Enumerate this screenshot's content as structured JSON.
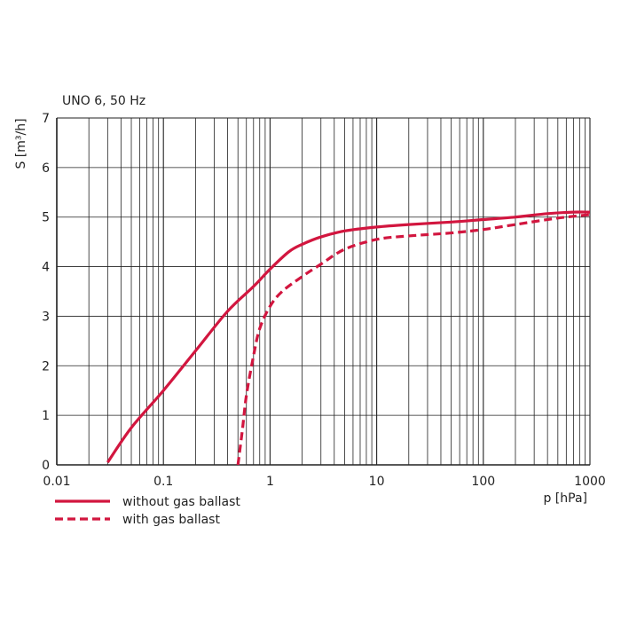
{
  "chart_data": {
    "type": "line",
    "title": "UNO 6, 50 Hz",
    "xlabel": "p [hPa]",
    "ylabel": "S [m³/h]",
    "xscale": "log",
    "xlim": [
      0.01,
      1000
    ],
    "ylim": [
      0,
      7
    ],
    "x_tick_labels": [
      "0.01",
      "0.1",
      "1",
      "10",
      "100",
      "1000"
    ],
    "y_tick_labels": [
      "0",
      "1",
      "2",
      "3",
      "4",
      "5",
      "6",
      "7"
    ],
    "grid": "vertical",
    "legend_position": "bottom-left",
    "colors": {
      "series": "#d2163f",
      "grid": "#222222"
    },
    "series": [
      {
        "name": "without gas ballast",
        "style": "solid",
        "points": [
          [
            0.03,
            0.05
          ],
          [
            0.05,
            0.75
          ],
          [
            0.1,
            1.5
          ],
          [
            0.2,
            2.3
          ],
          [
            0.4,
            3.1
          ],
          [
            0.7,
            3.6
          ],
          [
            1.0,
            3.95
          ],
          [
            1.5,
            4.3
          ],
          [
            2.0,
            4.45
          ],
          [
            3.0,
            4.6
          ],
          [
            5.0,
            4.72
          ],
          [
            10,
            4.8
          ],
          [
            20,
            4.85
          ],
          [
            50,
            4.9
          ],
          [
            100,
            4.95
          ],
          [
            200,
            5.0
          ],
          [
            400,
            5.07
          ],
          [
            700,
            5.1
          ],
          [
            1000,
            5.1
          ]
        ]
      },
      {
        "name": "with gas ballast",
        "style": "dashed",
        "points": [
          [
            0.5,
            0.0
          ],
          [
            0.55,
            0.7
          ],
          [
            0.6,
            1.4
          ],
          [
            0.7,
            2.2
          ],
          [
            0.8,
            2.75
          ],
          [
            1.0,
            3.2
          ],
          [
            1.3,
            3.5
          ],
          [
            2.0,
            3.8
          ],
          [
            3.0,
            4.05
          ],
          [
            5.0,
            4.35
          ],
          [
            10,
            4.55
          ],
          [
            20,
            4.62
          ],
          [
            50,
            4.68
          ],
          [
            100,
            4.75
          ],
          [
            200,
            4.85
          ],
          [
            500,
            4.98
          ],
          [
            1000,
            5.05
          ]
        ]
      }
    ]
  }
}
